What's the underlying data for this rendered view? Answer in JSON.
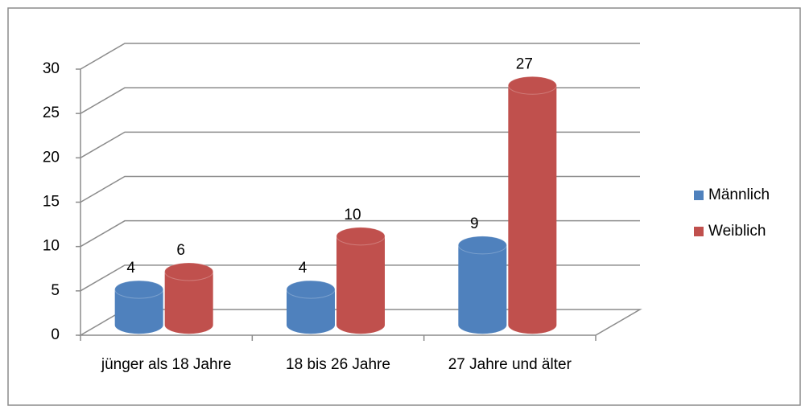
{
  "chart_data": {
    "type": "bar3d",
    "categories": [
      "jünger als 18 Jahre",
      "18 bis 26 Jahre",
      "27 Jahre und älter"
    ],
    "series": [
      {
        "name": "Männlich",
        "color": "#4f81bd",
        "values": [
          4,
          4,
          9
        ]
      },
      {
        "name": "Weiblich",
        "color": "#c0504d",
        "values": [
          6,
          10,
          27
        ]
      }
    ],
    "ylim": [
      0,
      30
    ],
    "yticks": [
      0,
      5,
      10,
      15,
      20,
      25,
      30
    ],
    "grid": true,
    "legend": "right"
  }
}
